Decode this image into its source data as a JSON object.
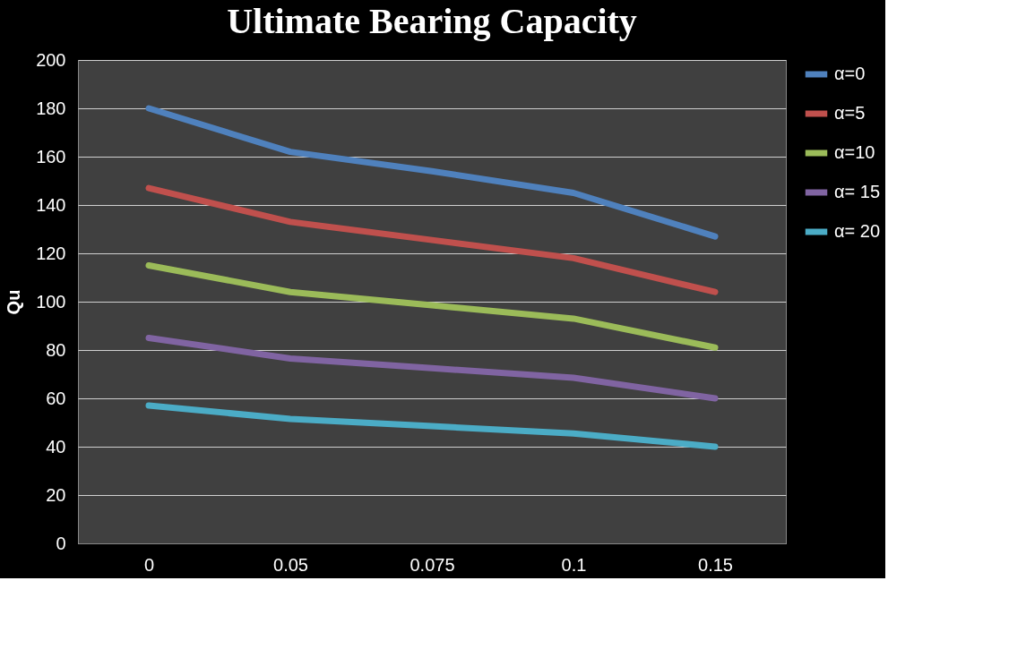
{
  "chart_data": {
    "type": "line",
    "title": "Ultimate Bearing Capacity",
    "ylabel": "Qu",
    "categories": [
      "0",
      "0.05",
      "0.075",
      "0.1",
      "0.15"
    ],
    "series": [
      {
        "name": "α=0",
        "color": "#4f81bd",
        "values": [
          180,
          162,
          154,
          145,
          127
        ]
      },
      {
        "name": "α=5",
        "color": "#c0504d",
        "values": [
          147,
          133,
          125.5,
          118,
          104
        ]
      },
      {
        "name": "α=10",
        "color": "#9bbb59",
        "values": [
          115,
          104,
          98.5,
          93,
          81
        ]
      },
      {
        "name": "α= 15",
        "color": "#8064a2",
        "values": [
          85,
          76.5,
          72.5,
          68.5,
          60
        ]
      },
      {
        "name": "α= 20",
        "color": "#4bacc6",
        "values": [
          57,
          51.5,
          48.5,
          45.5,
          40
        ]
      }
    ],
    "ylim": [
      0,
      200
    ],
    "yticks": [
      0,
      20,
      40,
      60,
      80,
      100,
      120,
      140,
      160,
      180,
      200
    ],
    "grid": "y",
    "legend": "right",
    "line_style": "solid"
  }
}
